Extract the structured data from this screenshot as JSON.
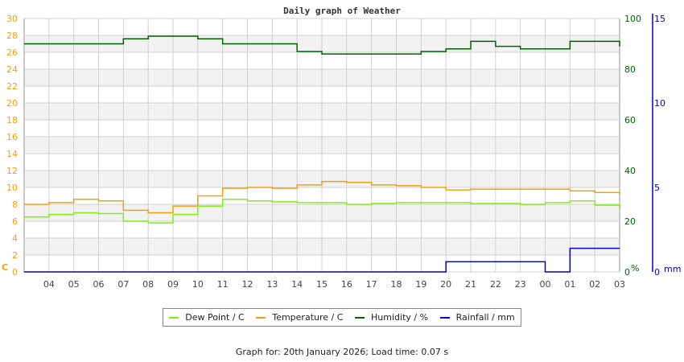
{
  "page": {
    "title": "Daily graph of Weather",
    "footer": "Graph for: 20th January 2026; Load time: 0.07 s"
  },
  "colors": {
    "dew_point": "#80ee10",
    "temperature": "#f0a010",
    "humidity": "#006400",
    "rainfall": "#0000c8",
    "left_axis": "#f0a010",
    "humidity_axis": "#006400",
    "rain_axis": "#0000c8",
    "grid": "#d0d0d0",
    "band": "#f2f2f2"
  },
  "legend": [
    {
      "label": "Dew Point / C",
      "color": "#80ee10"
    },
    {
      "label": "Temperature / C",
      "color": "#f0a010"
    },
    {
      "label": "Humidity / %",
      "color": "#006400"
    },
    {
      "label": "Rainfall / mm",
      "color": "#0000c8"
    }
  ],
  "axes": {
    "left": {
      "unit": "C",
      "ticks": [
        "0",
        "2",
        "4",
        "6",
        "8",
        "10",
        "12",
        "14",
        "16",
        "18",
        "20",
        "22",
        "24",
        "26",
        "28",
        "30"
      ]
    },
    "right_humidity": {
      "unit": "%",
      "ticks": [
        "0",
        "20",
        "40",
        "60",
        "80",
        "100"
      ]
    },
    "right_rain": {
      "unit": "mm",
      "ticks": [
        "0",
        "5",
        "10",
        "15"
      ]
    },
    "x_ticks": [
      "04",
      "05",
      "06",
      "07",
      "08",
      "09",
      "10",
      "11",
      "12",
      "13",
      "14",
      "15",
      "16",
      "17",
      "18",
      "19",
      "20",
      "21",
      "22",
      "23",
      "00",
      "01",
      "02",
      "03"
    ]
  },
  "chart_data": {
    "type": "line",
    "title": "Daily graph of Weather",
    "xlabel": "",
    "ylabel": "C",
    "y2label": "%",
    "y3label": "mm",
    "ylim": [
      0,
      30
    ],
    "y2lim": [
      0,
      100
    ],
    "y3lim": [
      0,
      15
    ],
    "grid": true,
    "legend_position": "bottom",
    "x": [
      "03:00",
      "04:00",
      "05:00",
      "06:00",
      "07:00",
      "08:00",
      "09:00",
      "10:00",
      "11:00",
      "12:00",
      "13:00",
      "14:00",
      "15:00",
      "16:00",
      "17:00",
      "18:00",
      "19:00",
      "20:00",
      "21:00",
      "22:00",
      "23:00",
      "00:00",
      "01:00",
      "02:00",
      "03:00"
    ],
    "series": [
      {
        "name": "Dew Point / C",
        "axis": "left",
        "values": [
          6.5,
          6.8,
          7.0,
          6.9,
          6.0,
          5.8,
          6.8,
          7.8,
          8.6,
          8.4,
          8.3,
          8.2,
          8.2,
          8.0,
          8.1,
          8.2,
          8.2,
          8.2,
          8.1,
          8.1,
          8.0,
          8.2,
          8.4,
          7.9,
          7.5
        ]
      },
      {
        "name": "Temperature / C",
        "axis": "left",
        "values": [
          8.0,
          8.2,
          8.6,
          8.4,
          7.3,
          7.0,
          7.8,
          9.0,
          9.9,
          10.0,
          9.9,
          10.3,
          10.7,
          10.6,
          10.3,
          10.2,
          10.0,
          9.7,
          9.8,
          9.8,
          9.8,
          9.8,
          9.6,
          9.4,
          9.2
        ]
      },
      {
        "name": "Humidity / %",
        "axis": "right",
        "values": [
          90,
          90,
          90,
          90,
          92,
          93,
          93,
          92,
          90,
          90,
          90,
          87,
          86,
          86,
          86,
          86,
          87,
          88,
          91,
          89,
          88,
          88,
          91,
          91,
          89
        ]
      },
      {
        "name": "Rainfall / mm",
        "axis": "right2",
        "values": [
          0,
          0,
          0,
          0,
          0,
          0,
          0,
          0,
          0,
          0,
          0,
          0,
          0,
          0,
          0,
          0,
          0,
          0.6,
          0.6,
          0.6,
          0.6,
          0.0,
          1.4,
          1.4,
          1.4
        ]
      }
    ]
  }
}
